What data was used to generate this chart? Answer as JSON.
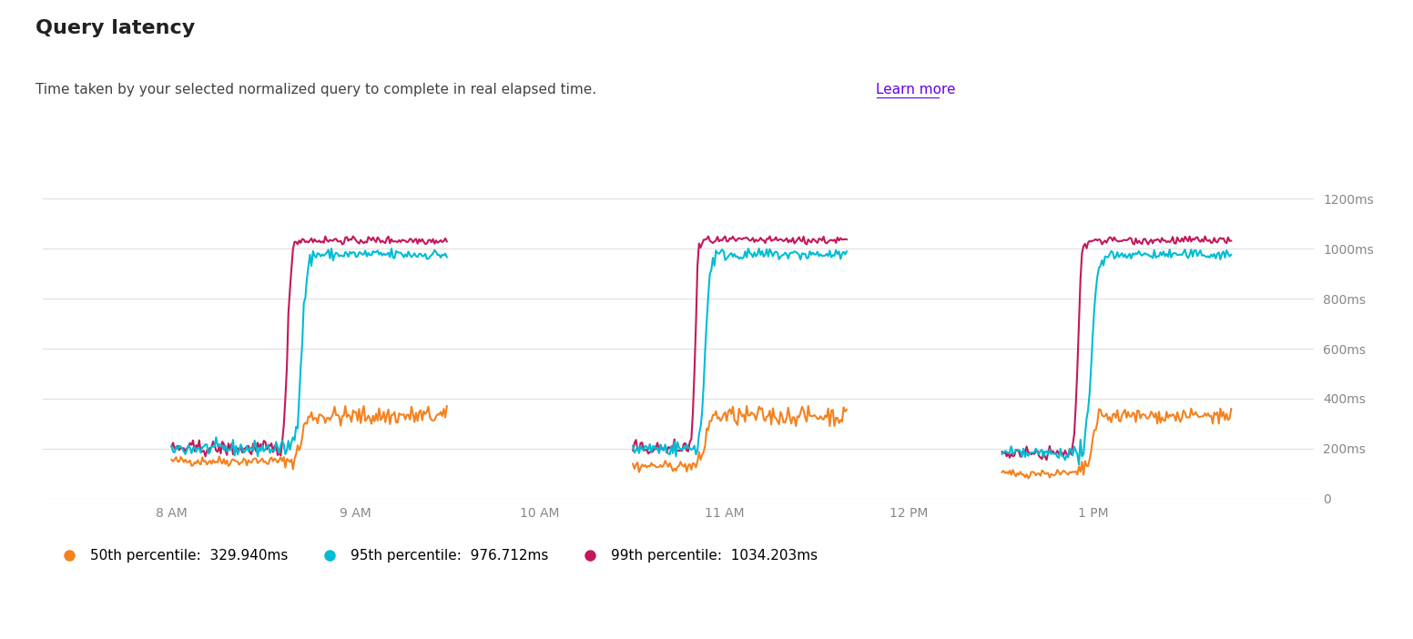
{
  "title": "Query latency",
  "subtitle": "Time taken by your selected normalized query to complete in real elapsed time.",
  "subtitle_link": "Learn more",
  "background_color": "#ffffff",
  "plot_bg_color": "#ffffff",
  "grid_color": "#e0e0e0",
  "y_ticks": [
    0,
    200,
    400,
    600,
    800,
    1000,
    1200
  ],
  "y_tick_labels": [
    "0",
    "200ms",
    "400ms",
    "600ms",
    "800ms",
    "1000ms",
    "1200ms"
  ],
  "ylim": [
    0,
    1280
  ],
  "x_tick_labels": [
    "8 AM",
    "9 AM",
    "10 AM",
    "11 AM",
    "12 PM",
    "1 PM"
  ],
  "colors": {
    "p50": "#F4821F",
    "p95": "#00BCD4",
    "p99": "#C2185B"
  },
  "legend": [
    {
      "label": "50th percentile:  329.940ms",
      "color": "#F4821F"
    },
    {
      "label": "95th percentile:  976.712ms",
      "color": "#00BCD4"
    },
    {
      "label": "99th percentile:  1034.203ms",
      "color": "#C2185B"
    }
  ],
  "title_fontsize": 16,
  "subtitle_fontsize": 11,
  "axis_fontsize": 10,
  "legend_fontsize": 11
}
